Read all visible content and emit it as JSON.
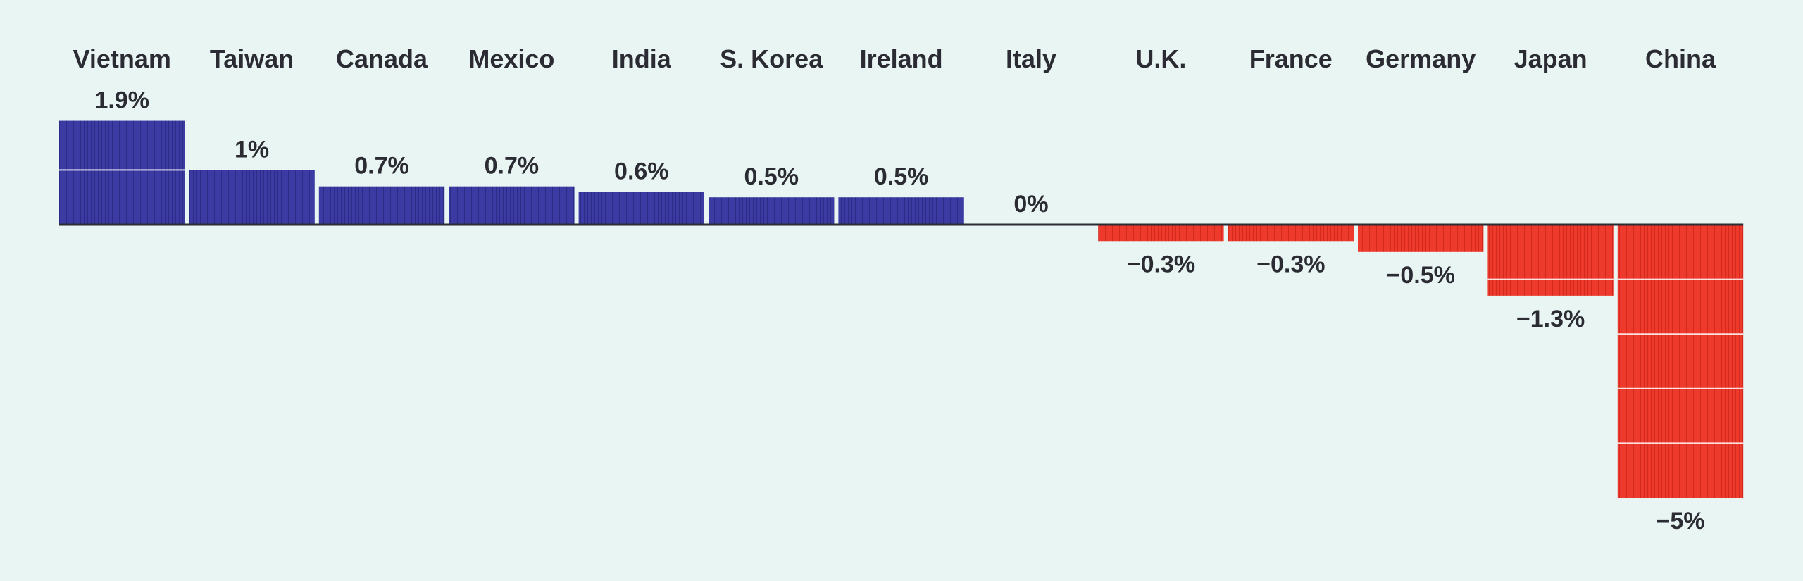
{
  "chart_data": {
    "type": "bar",
    "categories": [
      "Vietnam",
      "Taiwan",
      "Canada",
      "Mexico",
      "India",
      "S. Korea",
      "Ireland",
      "Italy",
      "U.K.",
      "France",
      "Germany",
      "Japan",
      "China"
    ],
    "values": [
      1.9,
      1,
      0.7,
      0.7,
      0.6,
      0.5,
      0.5,
      0,
      -0.3,
      -0.3,
      -0.5,
      -1.3,
      -5
    ],
    "value_labels": [
      "1.9%",
      "1%",
      "0.7%",
      "0.7%",
      "0.6%",
      "0.5%",
      "0.5%",
      "0%",
      "−0.3%",
      "−0.3%",
      "−0.5%",
      "−1.3%",
      "−5%"
    ],
    "title": "",
    "xlabel": "",
    "ylabel": "",
    "ylim": [
      -5,
      1.9
    ],
    "grid": false,
    "legend": "none",
    "colors": {
      "positive": "#3b3ba3",
      "negative": "#ee3a2c",
      "background": "#e9f5f2",
      "baseline": "#2b2b33",
      "text": "#2b2b33"
    }
  }
}
